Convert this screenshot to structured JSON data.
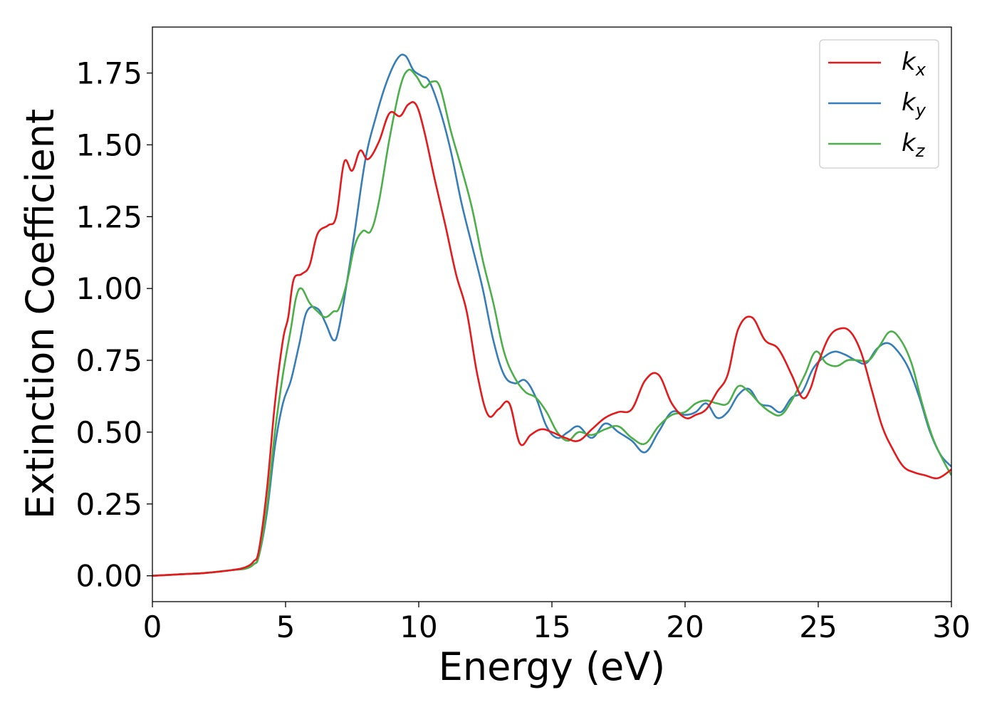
{
  "chart_data": {
    "type": "line",
    "xlabel": "Energy (eV)",
    "ylabel": "Extinction Coefficient",
    "xlim": [
      0,
      30
    ],
    "ylim": [
      -0.09,
      1.91
    ],
    "xticks": [
      0,
      5,
      10,
      15,
      20,
      25,
      30
    ],
    "xtick_labels": [
      "0",
      "5",
      "10",
      "15",
      "20",
      "25",
      "30"
    ],
    "yticks": [
      0.0,
      0.25,
      0.5,
      0.75,
      1.0,
      1.25,
      1.5,
      1.75
    ],
    "ytick_labels": [
      "0.00",
      "0.25",
      "0.50",
      "0.75",
      "1.00",
      "1.25",
      "1.50",
      "1.75"
    ],
    "grid": false,
    "legend_position": "top-right",
    "series": [
      {
        "name": "k_x",
        "label_main": "k",
        "label_sub": "x",
        "color": "#e41a1c",
        "x": [
          0,
          1,
          2,
          3,
          3.5,
          3.8,
          4.0,
          4.3,
          4.6,
          4.9,
          5.1,
          5.3,
          5.6,
          5.9,
          6.2,
          6.6,
          6.9,
          7.2,
          7.5,
          7.8,
          8.1,
          8.5,
          8.9,
          9.3,
          9.6,
          9.9,
          10.2,
          10.6,
          11.0,
          11.4,
          11.8,
          12.2,
          12.6,
          13.0,
          13.4,
          13.8,
          14.2,
          14.6,
          15.0,
          15.5,
          16.0,
          16.5,
          17.0,
          17.5,
          18.0,
          18.5,
          19.0,
          19.5,
          20.0,
          20.4,
          20.8,
          21.2,
          21.6,
          22.0,
          22.5,
          23.0,
          23.5,
          24.0,
          24.4,
          24.7,
          25.0,
          25.4,
          25.8,
          26.2,
          26.6,
          27.0,
          27.4,
          27.8,
          28.2,
          28.6,
          29.0,
          29.5,
          30.0
        ],
        "y": [
          0.0,
          0.005,
          0.01,
          0.02,
          0.03,
          0.05,
          0.09,
          0.3,
          0.6,
          0.82,
          0.9,
          1.03,
          1.05,
          1.08,
          1.19,
          1.22,
          1.25,
          1.44,
          1.41,
          1.48,
          1.45,
          1.51,
          1.61,
          1.6,
          1.64,
          1.64,
          1.55,
          1.38,
          1.22,
          1.05,
          0.92,
          0.7,
          0.56,
          0.58,
          0.6,
          0.46,
          0.49,
          0.51,
          0.5,
          0.48,
          0.47,
          0.51,
          0.55,
          0.57,
          0.58,
          0.68,
          0.7,
          0.6,
          0.55,
          0.56,
          0.58,
          0.64,
          0.7,
          0.86,
          0.9,
          0.82,
          0.79,
          0.7,
          0.62,
          0.65,
          0.74,
          0.83,
          0.86,
          0.85,
          0.78,
          0.65,
          0.52,
          0.44,
          0.38,
          0.36,
          0.35,
          0.34,
          0.37
        ]
      },
      {
        "name": "k_y",
        "label_main": "k",
        "label_sub": "y",
        "color": "#377eb8",
        "x": [
          0,
          1,
          2,
          3,
          3.5,
          3.8,
          4.0,
          4.3,
          4.6,
          4.9,
          5.2,
          5.5,
          5.8,
          6.2,
          6.5,
          6.8,
          7.0,
          7.3,
          7.6,
          8.0,
          8.4,
          8.8,
          9.2,
          9.5,
          9.8,
          10.1,
          10.4,
          10.8,
          11.2,
          11.6,
          12.0,
          12.4,
          12.8,
          13.2,
          13.6,
          14.0,
          14.4,
          14.8,
          15.2,
          15.6,
          16.0,
          16.5,
          17.0,
          17.5,
          18.0,
          18.5,
          19.0,
          19.5,
          20.0,
          20.4,
          20.8,
          21.2,
          21.6,
          22.0,
          22.4,
          22.8,
          23.2,
          23.6,
          24.0,
          24.4,
          24.8,
          25.2,
          25.6,
          26.0,
          26.4,
          26.8,
          27.2,
          27.6,
          28.0,
          28.4,
          28.8,
          29.2,
          29.6,
          30.0
        ],
        "y": [
          0.0,
          0.005,
          0.01,
          0.02,
          0.025,
          0.04,
          0.07,
          0.22,
          0.45,
          0.6,
          0.68,
          0.8,
          0.92,
          0.93,
          0.88,
          0.82,
          0.86,
          1.02,
          1.2,
          1.45,
          1.6,
          1.72,
          1.8,
          1.81,
          1.76,
          1.74,
          1.72,
          1.62,
          1.48,
          1.3,
          1.15,
          1.0,
          0.82,
          0.7,
          0.67,
          0.68,
          0.62,
          0.52,
          0.48,
          0.5,
          0.52,
          0.48,
          0.53,
          0.5,
          0.47,
          0.43,
          0.5,
          0.57,
          0.56,
          0.57,
          0.6,
          0.55,
          0.57,
          0.63,
          0.65,
          0.6,
          0.59,
          0.57,
          0.62,
          0.64,
          0.72,
          0.76,
          0.78,
          0.77,
          0.75,
          0.74,
          0.79,
          0.81,
          0.78,
          0.72,
          0.62,
          0.5,
          0.42,
          0.38
        ]
      },
      {
        "name": "k_z",
        "label_main": "k",
        "label_sub": "z",
        "color": "#4daf4a",
        "x": [
          0,
          1,
          2,
          3,
          3.5,
          3.8,
          4.0,
          4.3,
          4.6,
          4.9,
          5.2,
          5.4,
          5.6,
          5.9,
          6.2,
          6.5,
          6.8,
          7.0,
          7.3,
          7.6,
          7.9,
          8.2,
          8.5,
          8.9,
          9.3,
          9.6,
          9.9,
          10.2,
          10.5,
          10.8,
          11.2,
          11.6,
          12.0,
          12.4,
          12.8,
          13.2,
          13.6,
          14.0,
          14.4,
          14.8,
          15.2,
          15.6,
          16.0,
          16.5,
          17.0,
          17.5,
          18.0,
          18.5,
          19.0,
          19.5,
          20.0,
          20.4,
          20.8,
          21.2,
          21.6,
          22.0,
          22.4,
          22.8,
          23.2,
          23.6,
          24.0,
          24.5,
          24.9,
          25.3,
          25.7,
          26.1,
          26.5,
          26.9,
          27.3,
          27.7,
          28.1,
          28.5,
          28.9,
          29.3,
          29.7,
          30.0
        ],
        "y": [
          0.0,
          0.005,
          0.01,
          0.02,
          0.025,
          0.04,
          0.07,
          0.24,
          0.5,
          0.7,
          0.86,
          0.97,
          1.0,
          0.95,
          0.92,
          0.9,
          0.92,
          0.93,
          1.02,
          1.15,
          1.2,
          1.2,
          1.3,
          1.52,
          1.7,
          1.76,
          1.74,
          1.7,
          1.72,
          1.7,
          1.55,
          1.42,
          1.28,
          1.1,
          0.95,
          0.78,
          0.69,
          0.64,
          0.62,
          0.57,
          0.5,
          0.47,
          0.5,
          0.49,
          0.51,
          0.52,
          0.48,
          0.46,
          0.52,
          0.56,
          0.57,
          0.6,
          0.61,
          0.6,
          0.6,
          0.66,
          0.64,
          0.6,
          0.57,
          0.56,
          0.61,
          0.7,
          0.78,
          0.74,
          0.73,
          0.75,
          0.75,
          0.75,
          0.8,
          0.85,
          0.82,
          0.74,
          0.6,
          0.48,
          0.4,
          0.35
        ]
      }
    ]
  }
}
